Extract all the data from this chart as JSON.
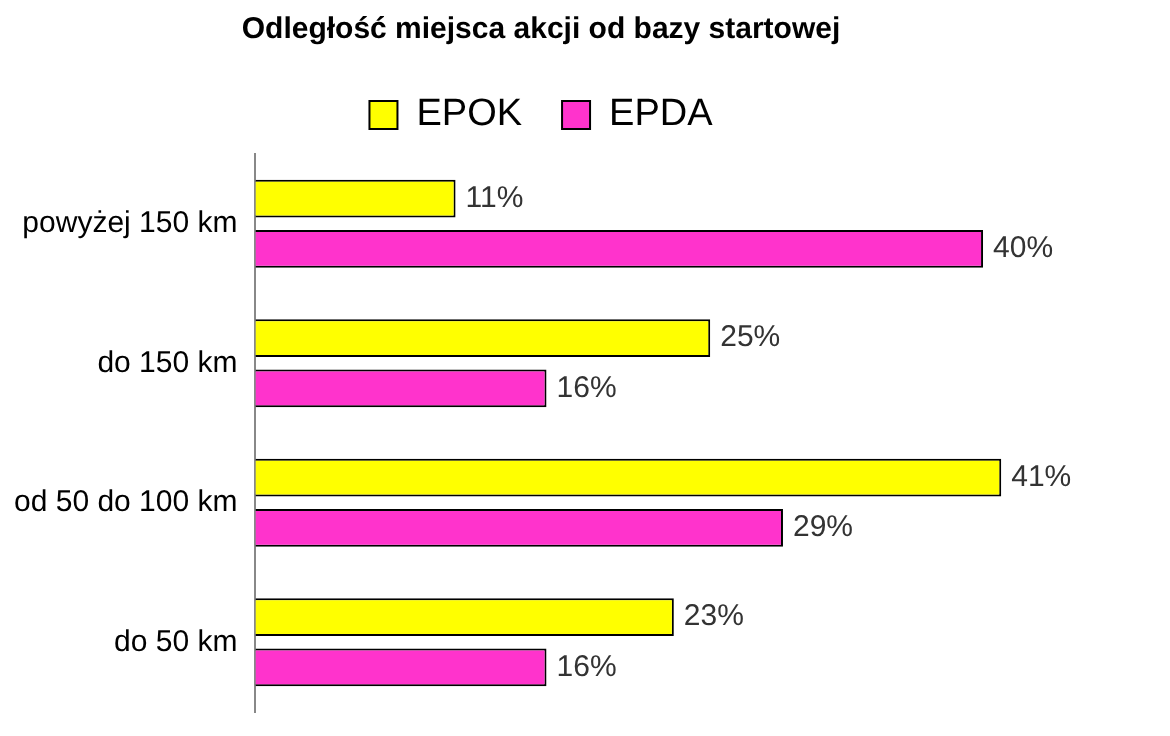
{
  "chart_data": {
    "type": "bar",
    "orientation": "horizontal",
    "title": "Odległość miejsca akcji od bazy startowej",
    "categories": [
      "powyżej 150 km",
      "do 150 km",
      "od 50 do 100 km",
      "do 50 km"
    ],
    "series": [
      {
        "name": "EPOK",
        "color": "#ffff00",
        "values": [
          11,
          25,
          41,
          23
        ],
        "value_labels": [
          "11%",
          "25%",
          "41%",
          "23%"
        ]
      },
      {
        "name": "EPDA",
        "color": "#ff33cc",
        "values": [
          40,
          16,
          29,
          16
        ],
        "value_labels": [
          "40%",
          "16%",
          "29%",
          "16%"
        ]
      }
    ],
    "tick_labels": "y",
    "legend": "top"
  }
}
